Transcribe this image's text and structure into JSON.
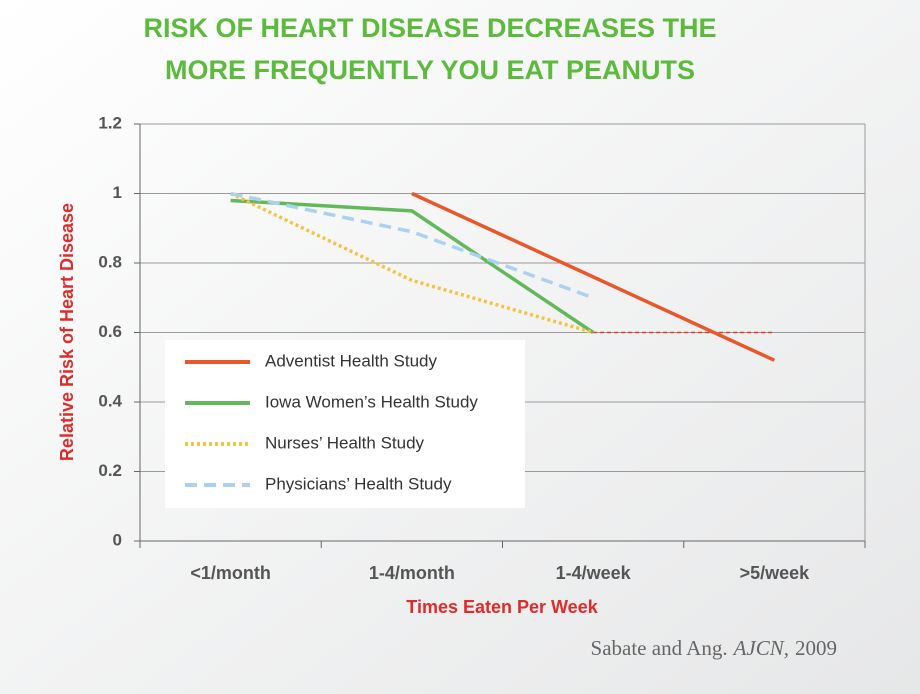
{
  "chart_data": {
    "type": "line",
    "title": [
      "RISK OF HEART DISEASE DECREASES THE",
      "MORE FREQUENTLY YOU EAT PEANUTS"
    ],
    "x_label": "Times Eaten Per Week",
    "y_label": "Relative Risk of Heart Disease",
    "source": [
      "Sabate and Ang.",
      "AJCN,",
      "2009"
    ],
    "categories": [
      "<1/month",
      "1-4/month",
      "1-4/week",
      ">5/week"
    ],
    "ylim": [
      0,
      1.2
    ],
    "yticks": [
      0,
      0.2,
      0.4,
      0.6,
      0.8,
      1,
      1.2
    ],
    "grid": true,
    "series": [
      {
        "name": "Adventist Health Study",
        "color": "#e8582a",
        "style": "solid",
        "values": [
          null,
          1.0,
          0.76,
          0.52
        ]
      },
      {
        "name": "Iowa Women’s Health Study",
        "color": "#62b85a",
        "style": "solid",
        "values": [
          0.98,
          0.95,
          0.6,
          null
        ]
      },
      {
        "name": "Nurses’ Health Study",
        "color": "#f5c242",
        "style": "dotted",
        "values": [
          1.0,
          0.75,
          0.6,
          null
        ]
      },
      {
        "name": "Physicians’ Health Study",
        "color": "#aad2ee",
        "style": "dashed",
        "values": [
          1.0,
          0.89,
          0.7,
          null
        ]
      }
    ],
    "extension": {
      "color": "#e03c2c",
      "style": "finedash",
      "values": [
        null,
        null,
        0.6,
        0.6
      ]
    }
  }
}
